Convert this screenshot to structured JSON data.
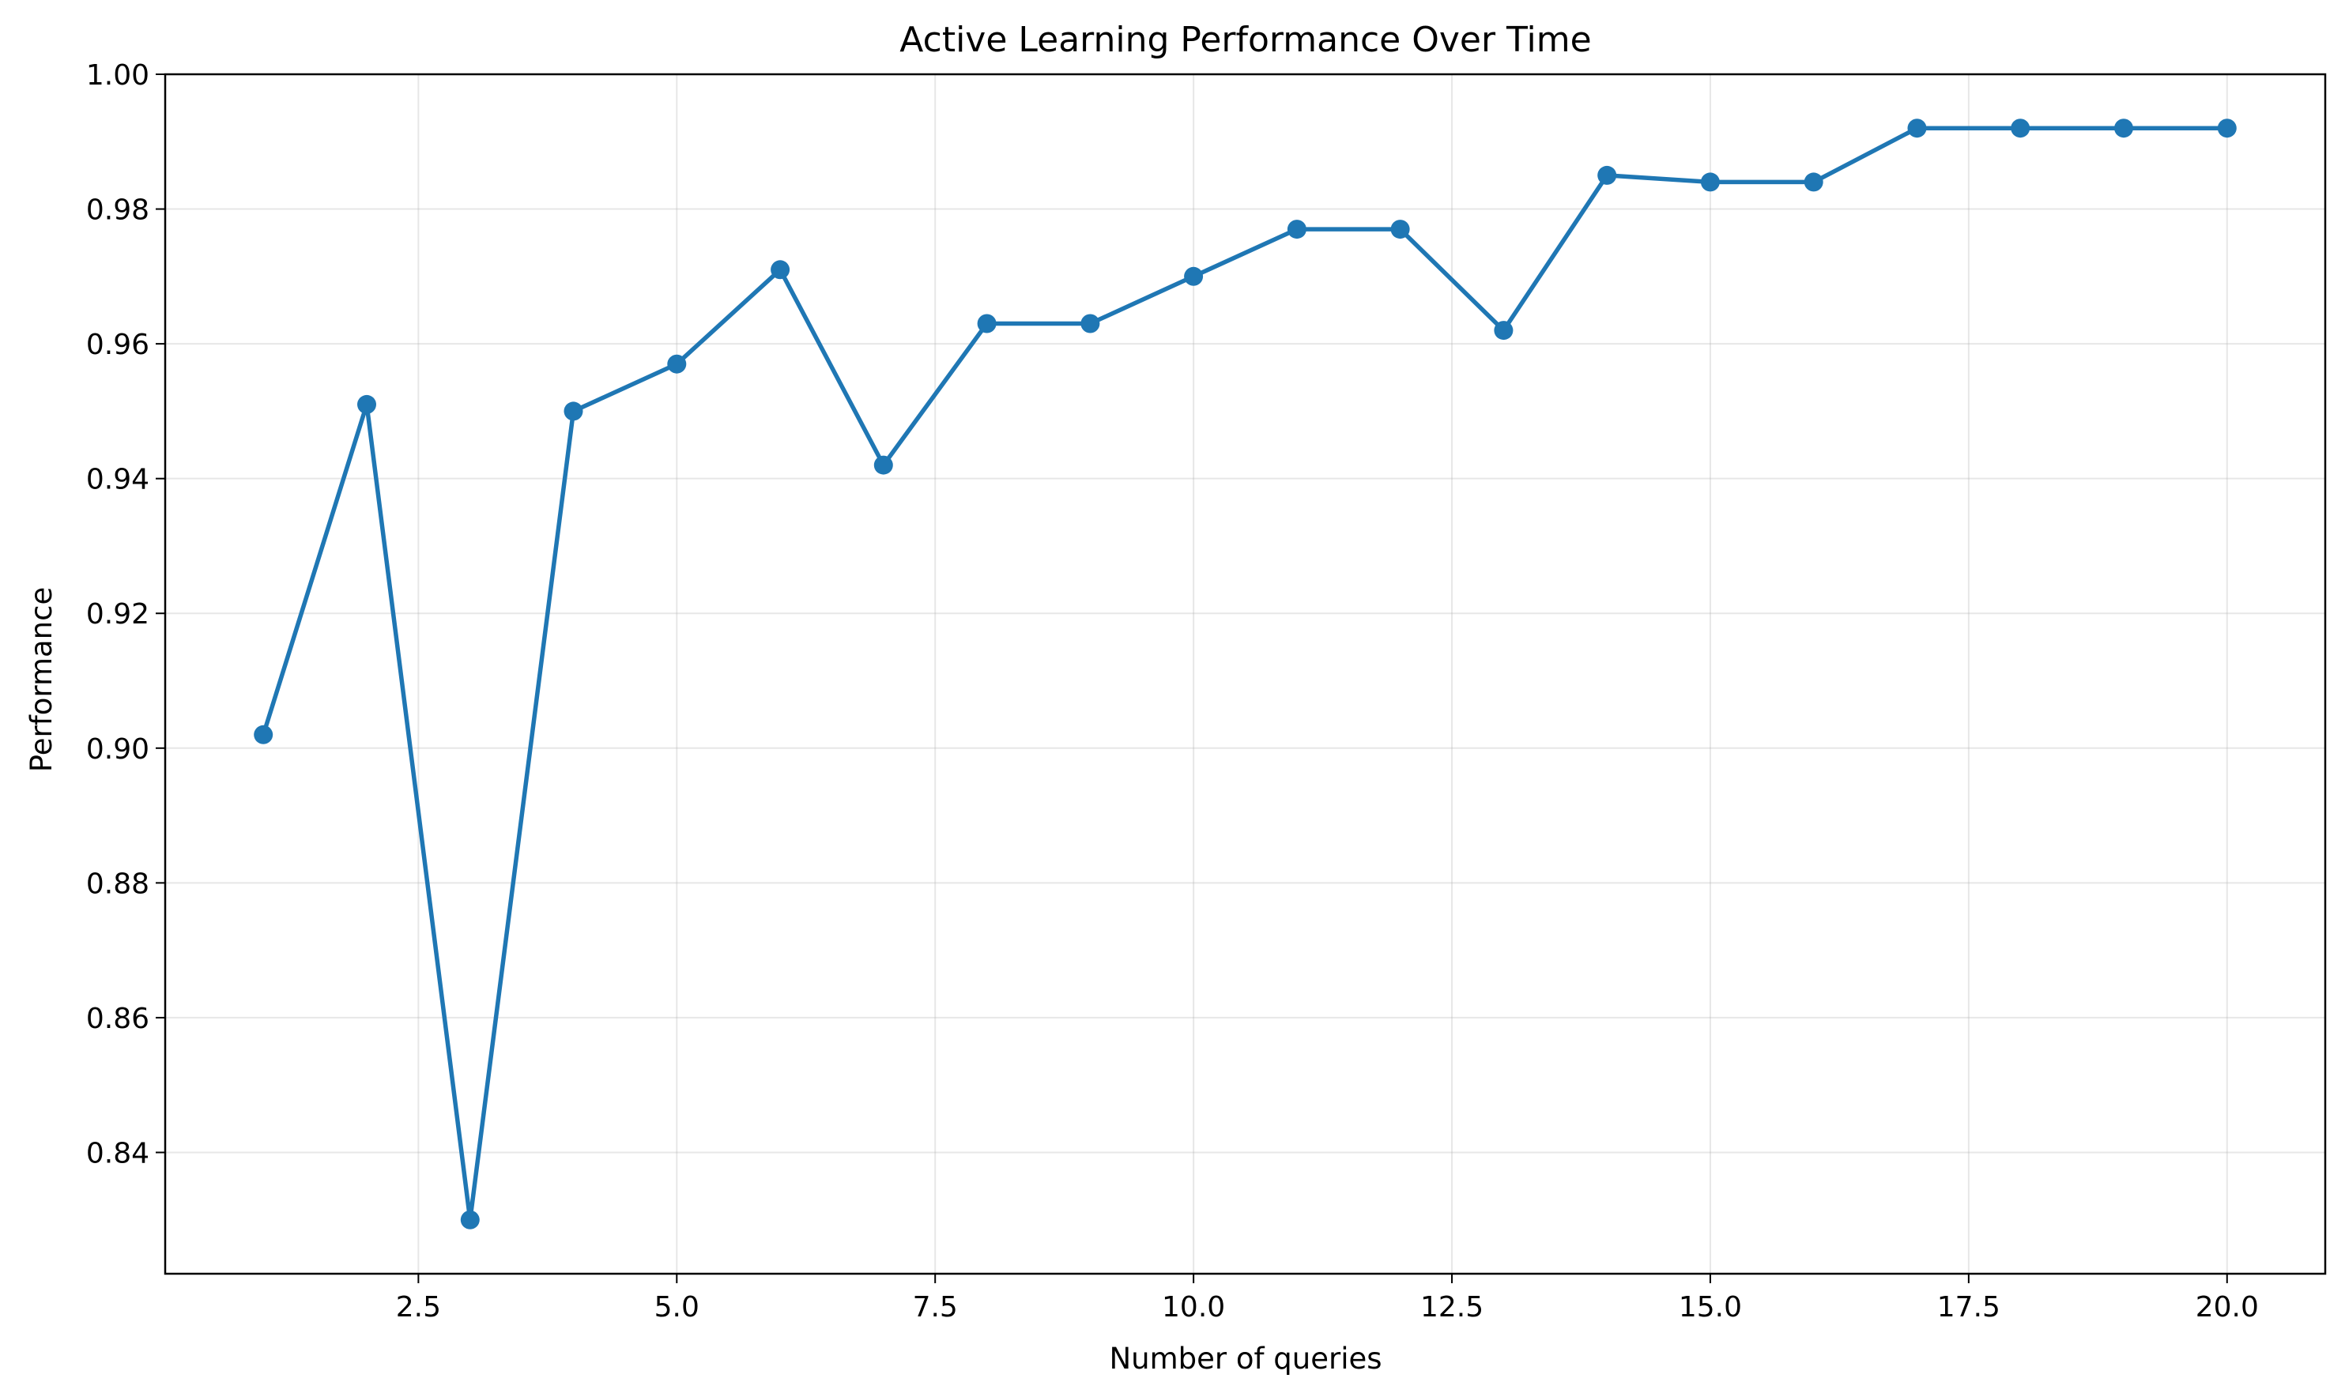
{
  "chart_data": {
    "type": "line",
    "title": "Active Learning Performance Over Time",
    "xlabel": "Number of queries",
    "ylabel": "Performance",
    "xlim": [
      0.05,
      20.95
    ],
    "ylim": [
      0.822,
      1.0
    ],
    "xticks": [
      2.5,
      5.0,
      7.5,
      10.0,
      12.5,
      15.0,
      17.5,
      20.0
    ],
    "xtick_labels": [
      "2.5",
      "5.0",
      "7.5",
      "10.0",
      "12.5",
      "15.0",
      "17.5",
      "20.0"
    ],
    "yticks": [
      0.84,
      0.86,
      0.88,
      0.9,
      0.92,
      0.94,
      0.96,
      0.98,
      1.0
    ],
    "ytick_labels": [
      "0.84",
      "0.86",
      "0.88",
      "0.90",
      "0.92",
      "0.94",
      "0.96",
      "0.98",
      "1.00"
    ],
    "grid": true,
    "series": [
      {
        "color": "#1f77b4",
        "marker": "circle",
        "x": [
          1,
          2,
          3,
          4,
          5,
          6,
          7,
          8,
          9,
          10,
          11,
          12,
          13,
          14,
          15,
          16,
          17,
          18,
          19,
          20
        ],
        "y": [
          0.902,
          0.951,
          0.83,
          0.95,
          0.957,
          0.971,
          0.942,
          0.963,
          0.963,
          0.97,
          0.977,
          0.977,
          0.962,
          0.985,
          0.984,
          0.984,
          0.992,
          0.992,
          0.992,
          0.992
        ]
      }
    ]
  }
}
